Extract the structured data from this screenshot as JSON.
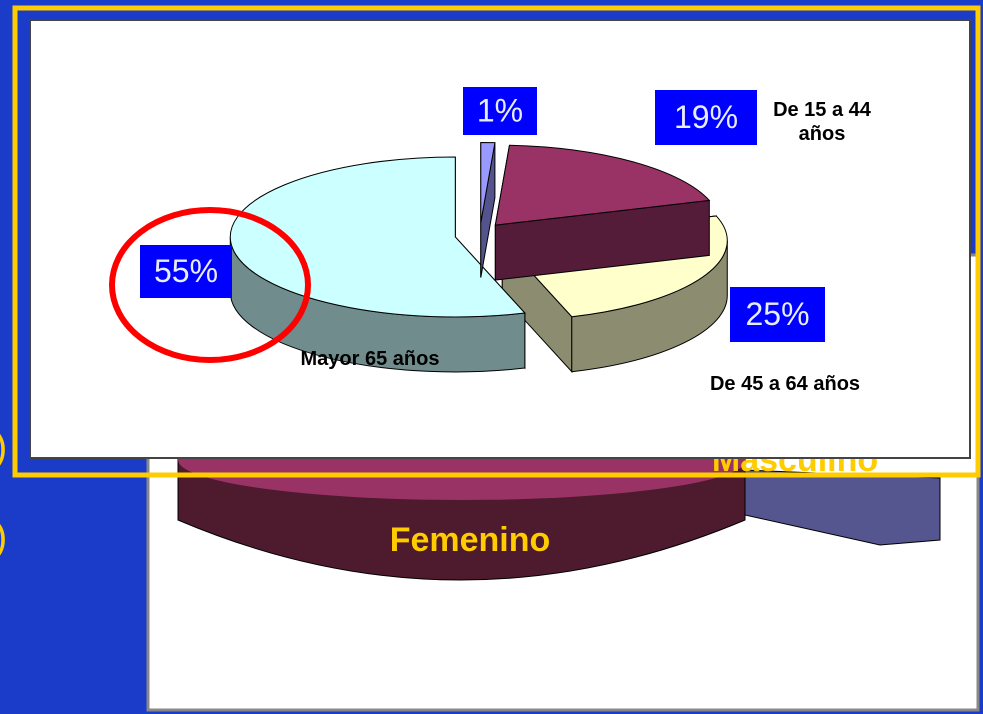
{
  "slide": {
    "side_notes": [
      ")",
      ")"
    ],
    "background_chart": {
      "labels": [
        "Femenino",
        "Masculino"
      ]
    }
  },
  "chart_data": {
    "type": "pie",
    "categories": [
      null,
      "De 15 a 44 años",
      "De 45 a 64 años",
      "Mayor 65 años"
    ],
    "values": [
      1,
      19,
      25,
      55
    ],
    "value_labels": [
      "1%",
      "19%",
      "25%",
      "55%"
    ],
    "colors": [
      "#9999ff",
      "#993366",
      "#ffffcc",
      "#ccffff"
    ]
  }
}
